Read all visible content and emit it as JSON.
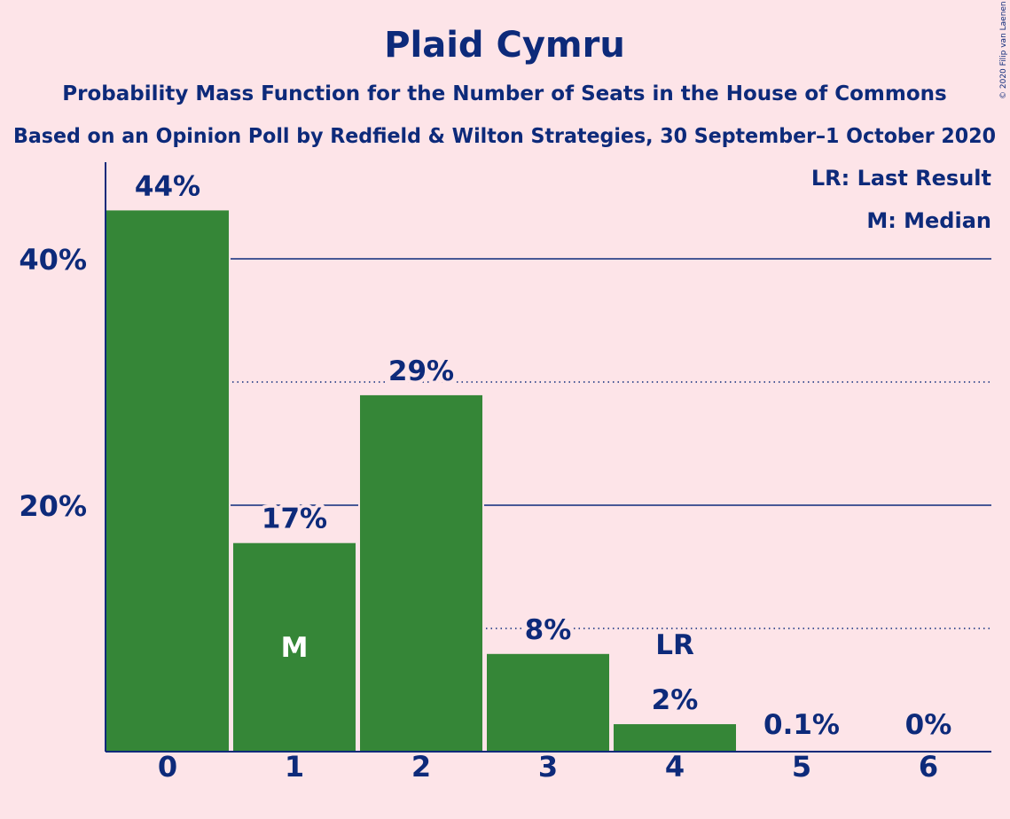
{
  "chart_data": {
    "type": "bar",
    "title": "Plaid Cymru",
    "subtitle": "Probability Mass Function for the Number of Seats in the House of Commons",
    "subtitle2": "Based on an Opinion Poll by Redfield & Wilton Strategies, 30 September–1 October 2020",
    "copyright": "© 2020 Filip van Laenen",
    "legend": [
      "LR: Last Result",
      "M: Median"
    ],
    "legend_position": "top-right",
    "categories": [
      "0",
      "1",
      "2",
      "3",
      "4",
      "5",
      "6"
    ],
    "values": [
      44,
      17,
      29,
      8,
      2.3,
      0.1,
      0
    ],
    "labels": [
      "44%",
      "17%",
      "29%",
      "8%",
      "2%",
      "0.1%",
      "0%"
    ],
    "ylim": [
      0,
      48
    ],
    "yticks": [
      {
        "value": 20,
        "label": "20%"
      },
      {
        "value": 40,
        "label": "40%"
      }
    ],
    "minor_gridlines": [
      10,
      30
    ],
    "median_index": 1,
    "median_marker": "M",
    "last_result_index": 4,
    "last_result_marker": "LR",
    "colors": {
      "bar": "#358637",
      "text": "#0d2a7a",
      "background": "#fde4e8"
    }
  }
}
